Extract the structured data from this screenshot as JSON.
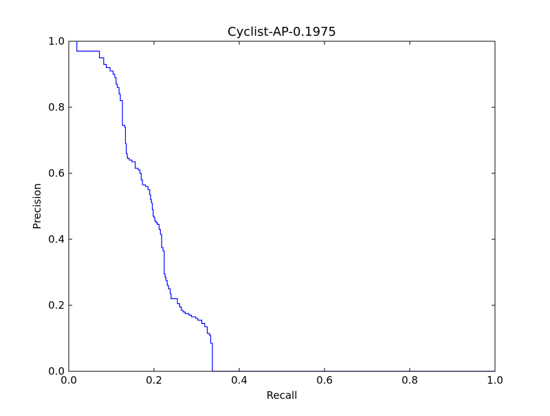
{
  "chart_data": {
    "type": "line",
    "title": "Cyclist-AP-0.1975",
    "xlabel": "Recall",
    "ylabel": "Precision",
    "xlim": [
      0.0,
      1.0
    ],
    "ylim": [
      0.0,
      1.0
    ],
    "xticks": [
      0.0,
      0.2,
      0.4,
      0.6,
      0.8,
      1.0
    ],
    "yticks": [
      0.0,
      0.2,
      0.4,
      0.6,
      0.8,
      1.0
    ],
    "xtick_labels": [
      "0.0",
      "0.2",
      "0.4",
      "0.6",
      "0.8",
      "1.0"
    ],
    "ytick_labels": [
      "0.0",
      "0.2",
      "0.4",
      "0.6",
      "0.8",
      "1.0"
    ],
    "grid": false,
    "legend": "none",
    "step": true,
    "series": [
      {
        "color": "#0000ff",
        "x": [
          0.019,
          0.019,
          0.072,
          0.082,
          0.088,
          0.097,
          0.104,
          0.108,
          0.111,
          0.114,
          0.118,
          0.121,
          0.126,
          0.131,
          0.133,
          0.135,
          0.137,
          0.138,
          0.142,
          0.148,
          0.156,
          0.163,
          0.167,
          0.17,
          0.173,
          0.18,
          0.186,
          0.19,
          0.192,
          0.194,
          0.196,
          0.198,
          0.2,
          0.202,
          0.205,
          0.208,
          0.212,
          0.215,
          0.218,
          0.221,
          0.224,
          0.226,
          0.228,
          0.231,
          0.234,
          0.238,
          0.24,
          0.245,
          0.255,
          0.26,
          0.264,
          0.268,
          0.273,
          0.282,
          0.288,
          0.298,
          0.303,
          0.312,
          0.319,
          0.325,
          0.33,
          0.333,
          0.337,
          0.337,
          1.0
        ],
        "y": [
          1.0,
          0.97,
          0.95,
          0.93,
          0.92,
          0.91,
          0.9,
          0.89,
          0.87,
          0.86,
          0.84,
          0.82,
          0.745,
          0.74,
          0.69,
          0.66,
          0.65,
          0.645,
          0.64,
          0.635,
          0.615,
          0.61,
          0.6,
          0.58,
          0.565,
          0.56,
          0.55,
          0.535,
          0.52,
          0.51,
          0.49,
          0.47,
          0.465,
          0.455,
          0.45,
          0.445,
          0.43,
          0.415,
          0.375,
          0.365,
          0.295,
          0.285,
          0.275,
          0.26,
          0.25,
          0.235,
          0.22,
          0.22,
          0.205,
          0.195,
          0.185,
          0.18,
          0.175,
          0.17,
          0.165,
          0.16,
          0.155,
          0.145,
          0.135,
          0.115,
          0.11,
          0.085,
          0.08,
          0.0,
          0.0
        ]
      }
    ]
  }
}
